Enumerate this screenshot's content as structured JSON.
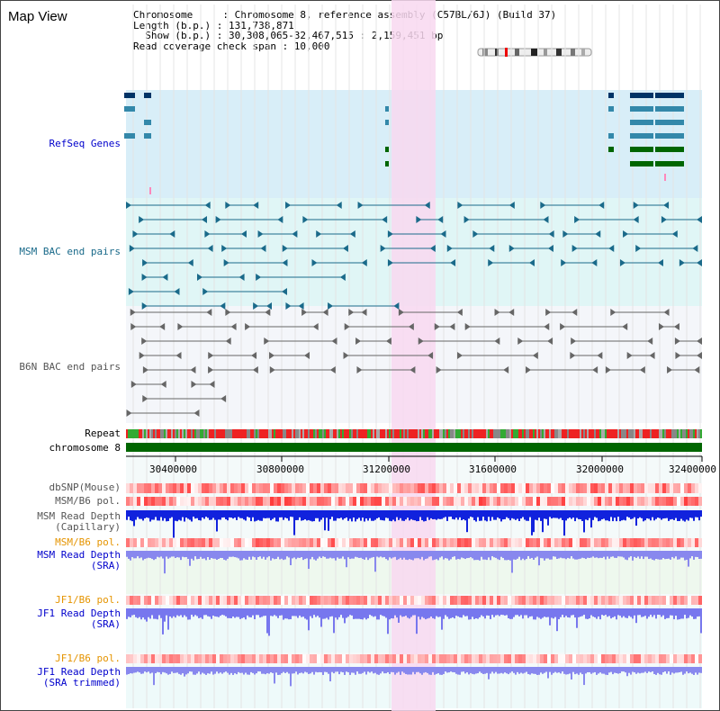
{
  "title": "Map View",
  "info": {
    "chromosome_line": "Chromosome     : Chromosome 8, reference assembly (C57BL/6J) (Build 37)",
    "length_line": "Length (b.p.) : 131,738,871",
    "show_line": "  Show (b.p.) : 30,308,065-32,467,515 : 2,159,451 bp",
    "span_line": "Read coverage check span : 10,000"
  },
  "tracks": {
    "refseq": {
      "label": "RefSeq Genes",
      "color": "#0000cc"
    },
    "msm_bac": {
      "label": "MSM BAC end pairs",
      "color": "#1a6a8a"
    },
    "b6n_bac": {
      "label": "B6N BAC end pairs",
      "color": "#555555"
    },
    "repeat": {
      "label": "Repeat",
      "color": "#000000"
    },
    "chromosome": {
      "label": "chromosome 8",
      "color": "#000000"
    },
    "dbsnp": {
      "label": "dbSNP(Mouse)",
      "color": "#555555"
    },
    "msm_b6_pol1": {
      "label": "MSM/B6 pol.",
      "color": "#555555"
    },
    "msm_depth_cap": {
      "label": "MSM Read Depth\n(Capillary)",
      "color": "#555555"
    },
    "msm_b6_pol2": {
      "label": "MSM/B6 pol.",
      "color": "#e59400"
    },
    "msm_depth_sra": {
      "label": "MSM Read Depth\n(SRA)",
      "color": "#0000cc"
    },
    "jf1_b6_pol1": {
      "label": "JF1/B6 pol.",
      "color": "#e59400"
    },
    "jf1_depth_sra": {
      "label": "JF1 Read Depth\n(SRA)",
      "color": "#0000cc"
    },
    "jf1_b6_pol2": {
      "label": "JF1/B6 pol.",
      "color": "#e59400"
    },
    "jf1_depth_trim": {
      "label": "JF1 Read Depth\n(SRA trimmed)",
      "color": "#0000cc"
    }
  },
  "axis": {
    "ticks": [
      "30400000",
      "30800000",
      "31200000",
      "31600000",
      "32000000",
      "32400000"
    ]
  },
  "colors": {
    "highlight": "#f8d8f0",
    "refseq_bg": "#d8eef8",
    "msm_bg": "#e0f6f6",
    "b6n_bg": "#f4f6fa",
    "chromosome_bar": "#006600"
  }
}
